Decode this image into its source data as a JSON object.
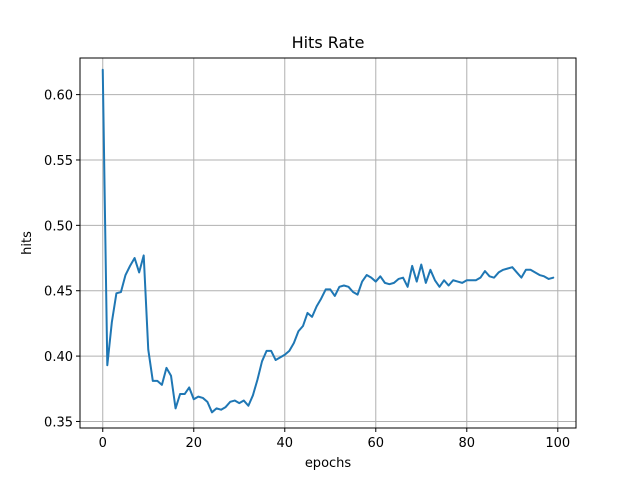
{
  "chart_data": {
    "type": "line",
    "title": "Hits Rate",
    "xlabel": "epochs",
    "ylabel": "hits",
    "xlim": [
      -5,
      104
    ],
    "ylim": [
      0.345,
      0.628
    ],
    "grid": true,
    "x_ticks": [
      0,
      20,
      40,
      60,
      80,
      100
    ],
    "x_tick_labels": [
      "0",
      "20",
      "40",
      "60",
      "80",
      "100"
    ],
    "y_ticks": [
      0.35,
      0.4,
      0.45,
      0.5,
      0.55,
      0.6
    ],
    "y_tick_labels": [
      "0.35",
      "0.40",
      "0.45",
      "0.50",
      "0.55",
      "0.60"
    ],
    "series": [
      {
        "color": "#1f77b4",
        "x": [
          0,
          1,
          2,
          3,
          4,
          5,
          6,
          7,
          8,
          9,
          10,
          11,
          12,
          13,
          14,
          15,
          16,
          17,
          18,
          19,
          20,
          21,
          22,
          23,
          24,
          25,
          26,
          27,
          28,
          29,
          30,
          31,
          32,
          33,
          34,
          35,
          36,
          37,
          38,
          39,
          40,
          41,
          42,
          43,
          44,
          45,
          46,
          47,
          48,
          49,
          50,
          51,
          52,
          53,
          54,
          55,
          56,
          57,
          58,
          59,
          60,
          61,
          62,
          63,
          64,
          65,
          66,
          67,
          68,
          69,
          70,
          71,
          72,
          73,
          74,
          75,
          76,
          77,
          78,
          79,
          80,
          81,
          82,
          83,
          84,
          85,
          86,
          87,
          88,
          89,
          90,
          91,
          92,
          93,
          94,
          95,
          96,
          97,
          98,
          99
        ],
        "y": [
          0.619,
          0.393,
          0.426,
          0.448,
          0.449,
          0.462,
          0.469,
          0.475,
          0.464,
          0.477,
          0.405,
          0.381,
          0.381,
          0.378,
          0.391,
          0.385,
          0.36,
          0.371,
          0.371,
          0.376,
          0.367,
          0.369,
          0.368,
          0.365,
          0.357,
          0.36,
          0.359,
          0.361,
          0.365,
          0.366,
          0.364,
          0.366,
          0.362,
          0.37,
          0.382,
          0.396,
          0.404,
          0.404,
          0.397,
          0.399,
          0.401,
          0.404,
          0.41,
          0.419,
          0.423,
          0.433,
          0.43,
          0.438,
          0.444,
          0.451,
          0.451,
          0.446,
          0.453,
          0.454,
          0.453,
          0.449,
          0.447,
          0.457,
          0.462,
          0.46,
          0.457,
          0.461,
          0.456,
          0.455,
          0.456,
          0.459,
          0.46,
          0.453,
          0.469,
          0.457,
          0.47,
          0.456,
          0.466,
          0.458,
          0.453,
          0.458,
          0.454,
          0.458,
          0.457,
          0.456,
          0.458,
          0.458,
          0.458,
          0.46,
          0.465,
          0.461,
          0.46,
          0.464,
          0.466,
          0.467,
          0.468,
          0.464,
          0.46,
          0.466,
          0.466,
          0.464,
          0.462,
          0.461,
          0.459,
          0.46
        ]
      }
    ]
  }
}
